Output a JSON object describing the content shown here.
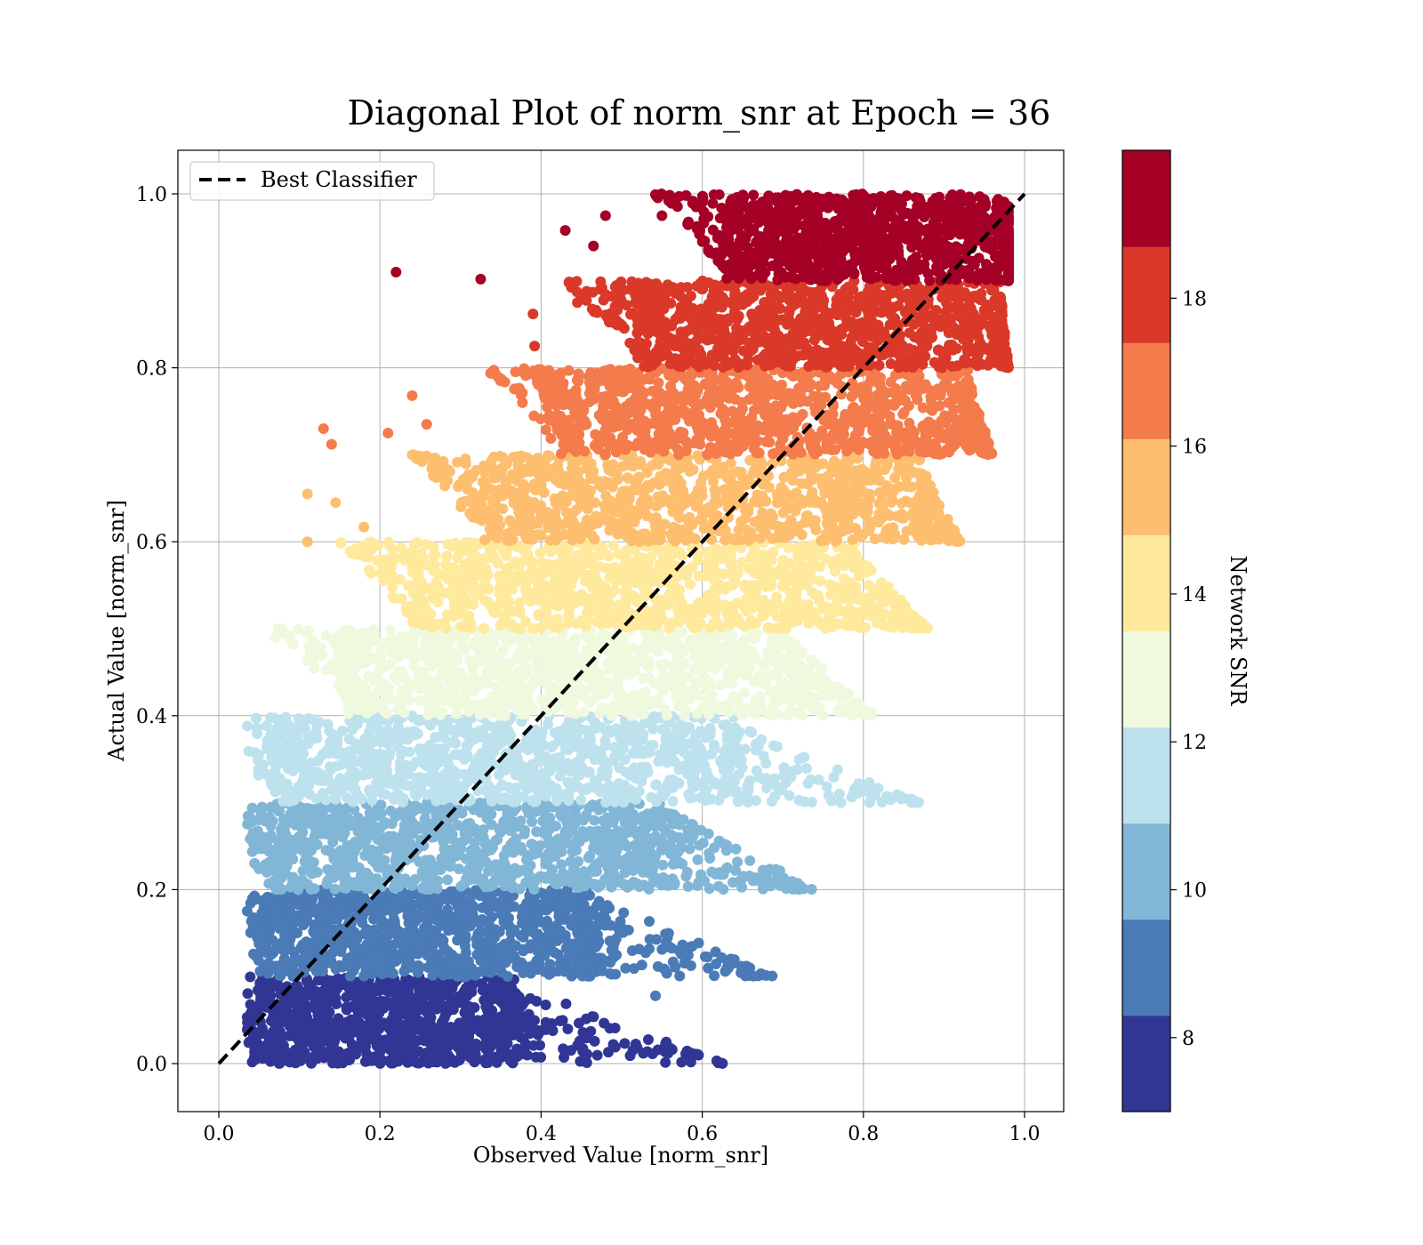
{
  "chart_data": {
    "type": "scatter",
    "title": "Diagonal Plot of norm_snr at Epoch = 36",
    "xlabel": "Observed Value [norm_snr]",
    "ylabel": "Actual Value [norm_snr]",
    "xlim": [
      -0.05,
      1.05
    ],
    "ylim": [
      -0.05,
      1.05
    ],
    "xticks": [
      "0.0",
      "0.2",
      "0.4",
      "0.6",
      "0.8",
      "1.0"
    ],
    "yticks": [
      "0.0",
      "0.2",
      "0.4",
      "0.6",
      "0.8",
      "1.0"
    ],
    "grid": true,
    "legend": {
      "placement": "upper-left",
      "entries": [
        {
          "label": "Best Classifier",
          "style": "dashed",
          "color": "#000000"
        }
      ]
    },
    "reference_line": {
      "x": [
        0,
        1
      ],
      "y": [
        0,
        1
      ],
      "style": "dashed",
      "color": "#000000"
    },
    "colorbar": {
      "label": "Network SNR",
      "range": [
        7,
        20
      ],
      "ticks": [
        "8",
        "10",
        "12",
        "14",
        "16",
        "18"
      ],
      "colors": [
        "#313695",
        "#4a7bb7",
        "#82b6d7",
        "#bde2ee",
        "#eff9de",
        "#fee99d",
        "#fdbf6f",
        "#f47b4b",
        "#da3929",
        "#a50026"
      ]
    },
    "bands": [
      {
        "snr_class": 1,
        "color": "#313695",
        "y_range": [
          0.0,
          0.1
        ],
        "x_core": [
          0.04,
          0.37
        ],
        "x_tail_to": 0.63
      },
      {
        "snr_class": 2,
        "color": "#4a7bb7",
        "y_range": [
          0.1,
          0.2
        ],
        "x_core": [
          0.05,
          0.47
        ],
        "x_tail_to": 0.69
      },
      {
        "snr_class": 3,
        "color": "#82b6d7",
        "y_range": [
          0.2,
          0.3
        ],
        "x_core": [
          0.06,
          0.56
        ],
        "x_tail_to": 0.74
      },
      {
        "snr_class": 4,
        "color": "#bde2ee",
        "y_range": [
          0.3,
          0.4
        ],
        "x_core": [
          0.07,
          0.64
        ],
        "x_tail_to": 0.87
      },
      {
        "snr_class": 5,
        "color": "#eff9de",
        "y_range": [
          0.4,
          0.5
        ],
        "x_core": [
          0.16,
          0.71
        ],
        "x_tail_to": 0.81
      },
      {
        "snr_class": 6,
        "color": "#fee99d",
        "y_range": [
          0.5,
          0.6
        ],
        "x_core": [
          0.24,
          0.79
        ],
        "x_tail_to": 0.88
      },
      {
        "snr_class": 7,
        "color": "#fdbf6f",
        "y_range": [
          0.6,
          0.7
        ],
        "x_core": [
          0.33,
          0.87
        ],
        "x_tail_to": 0.92
      },
      {
        "snr_class": 8,
        "color": "#f47b4b",
        "y_range": [
          0.7,
          0.8
        ],
        "x_core": [
          0.42,
          0.93
        ],
        "x_tail_to": 0.96
      },
      {
        "snr_class": 9,
        "color": "#da3929",
        "y_range": [
          0.8,
          0.9
        ],
        "x_core": [
          0.52,
          0.97
        ],
        "x_tail_to": 0.98
      },
      {
        "snr_class": 10,
        "color": "#a50026",
        "y_range": [
          0.9,
          1.0
        ],
        "x_core": [
          0.63,
          0.98
        ],
        "x_tail_to": 0.98
      }
    ],
    "outliers": [
      {
        "x": 0.22,
        "y": 0.91,
        "color": "#a50026"
      },
      {
        "x": 0.325,
        "y": 0.902,
        "color": "#a50026"
      },
      {
        "x": 0.43,
        "y": 0.958,
        "color": "#a50026"
      },
      {
        "x": 0.48,
        "y": 0.975,
        "color": "#a50026"
      },
      {
        "x": 0.55,
        "y": 0.975,
        "color": "#a50026"
      },
      {
        "x": 0.465,
        "y": 0.94,
        "color": "#a50026"
      },
      {
        "x": 0.6,
        "y": 0.99,
        "color": "#a50026"
      },
      {
        "x": 0.39,
        "y": 0.862,
        "color": "#da3929"
      },
      {
        "x": 0.445,
        "y": 0.875,
        "color": "#da3929"
      },
      {
        "x": 0.392,
        "y": 0.825,
        "color": "#da3929"
      },
      {
        "x": 0.13,
        "y": 0.73,
        "color": "#f47b4b"
      },
      {
        "x": 0.14,
        "y": 0.712,
        "color": "#f47b4b"
      },
      {
        "x": 0.21,
        "y": 0.725,
        "color": "#f47b4b"
      },
      {
        "x": 0.24,
        "y": 0.768,
        "color": "#f47b4b"
      },
      {
        "x": 0.258,
        "y": 0.735,
        "color": "#f47b4b"
      },
      {
        "x": 0.11,
        "y": 0.655,
        "color": "#fdbf6f"
      },
      {
        "x": 0.145,
        "y": 0.645,
        "color": "#fdbf6f"
      },
      {
        "x": 0.11,
        "y": 0.6,
        "color": "#fdbf6f"
      },
      {
        "x": 0.18,
        "y": 0.617,
        "color": "#fdbf6f"
      },
      {
        "x": 0.07,
        "y": 0.49,
        "color": "#eff9de"
      },
      {
        "x": 0.81,
        "y": 0.403,
        "color": "#eff9de"
      },
      {
        "x": 0.772,
        "y": 0.3,
        "color": "#bde2ee"
      },
      {
        "x": 0.63,
        "y": 0.245,
        "color": "#82b6d7"
      },
      {
        "x": 0.542,
        "y": 0.078,
        "color": "#4a7bb7"
      }
    ]
  }
}
